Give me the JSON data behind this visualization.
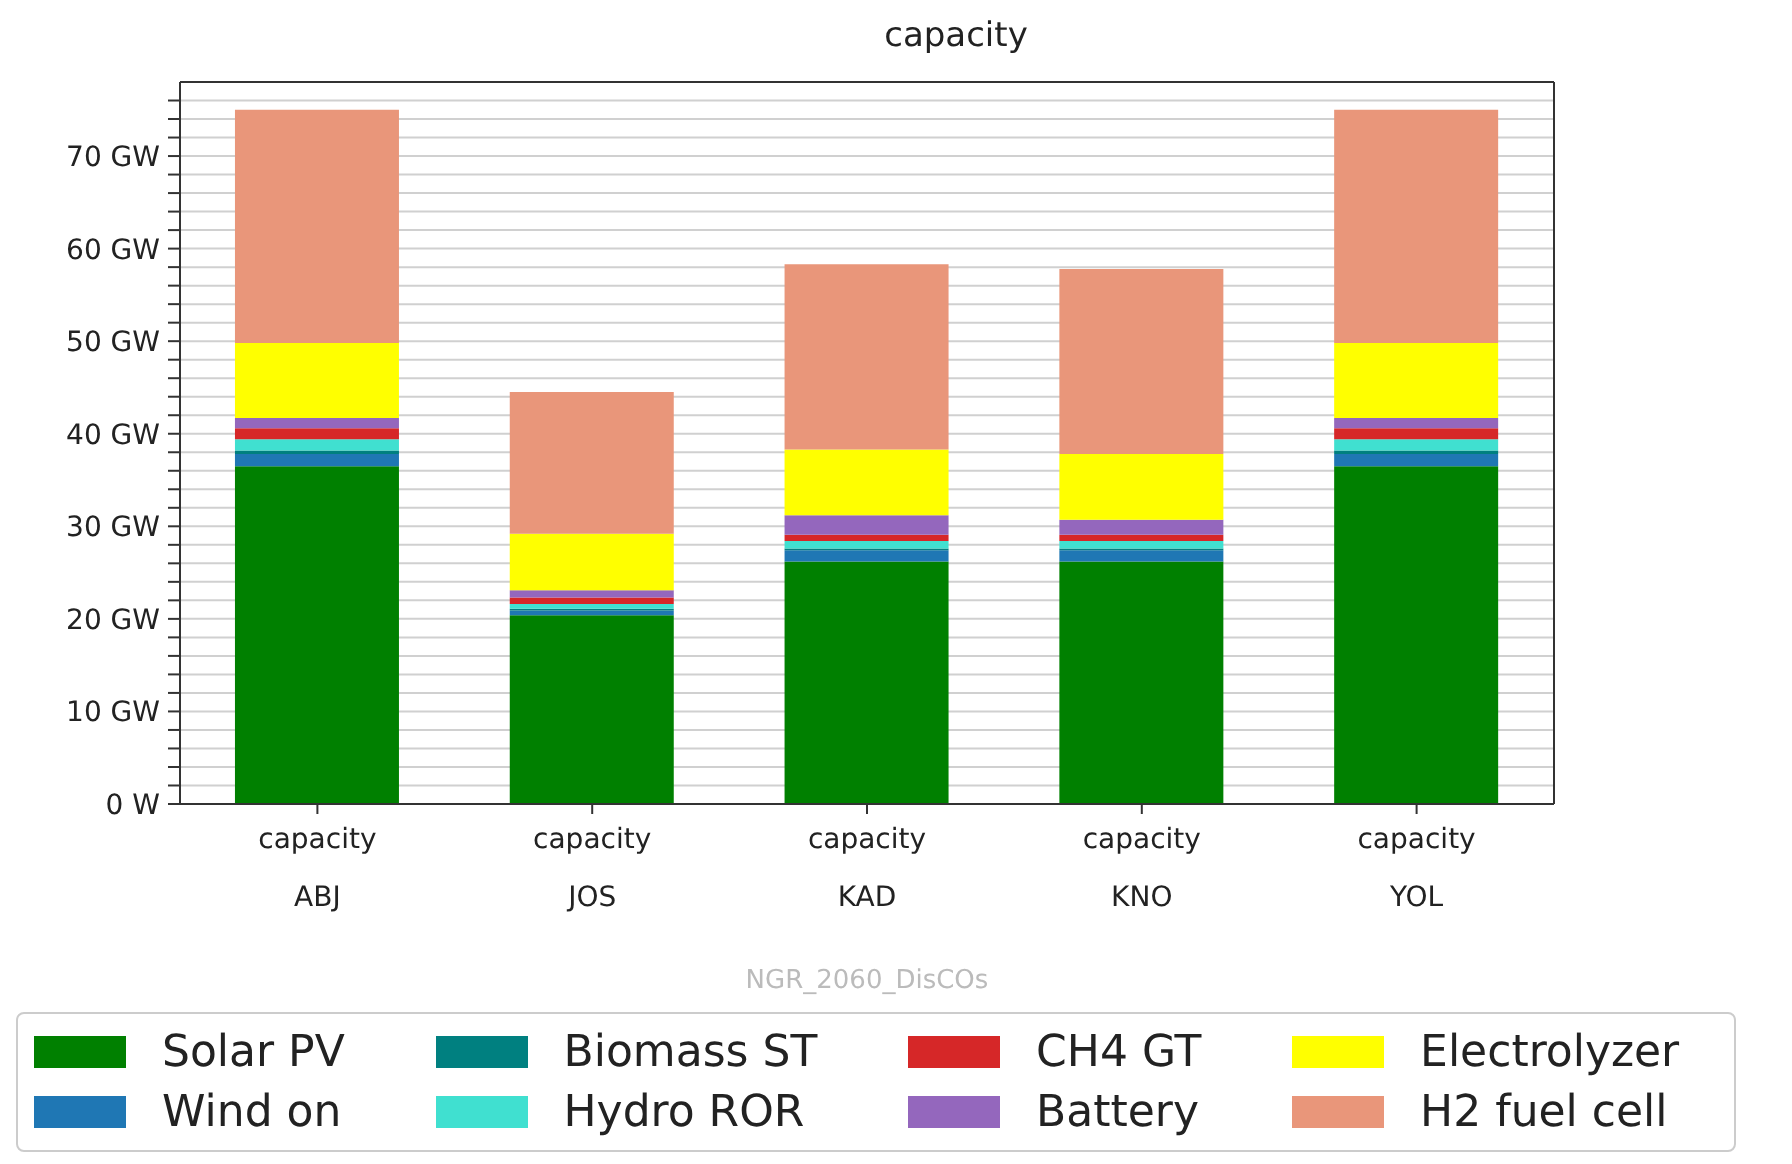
{
  "chart_data": {
    "type": "bar",
    "title": "capacity",
    "xlabel": "NGR_2060_DisCOs",
    "stacked": true,
    "categories": [
      "capacity\nABJ",
      "capacity\nJOS",
      "capacity\nKAD",
      "capacity\nKNO",
      "capacity\nYOL"
    ],
    "series": [
      {
        "name": "Solar PV",
        "color": "#008000",
        "values": [
          36.5,
          20.4,
          26.2,
          26.2,
          36.5
        ]
      },
      {
        "name": "Wind on",
        "color": "#1f77b4",
        "values": [
          1.3,
          0.5,
          1.2,
          1.2,
          1.3
        ]
      },
      {
        "name": "Biomass ST",
        "color": "#008080",
        "values": [
          0.4,
          0.2,
          0.2,
          0.2,
          0.4
        ]
      },
      {
        "name": "Hydro ROR",
        "color": "#40e0d0",
        "values": [
          1.2,
          0.5,
          0.8,
          0.8,
          1.2
        ]
      },
      {
        "name": "CH4 GT",
        "color": "#d62728",
        "values": [
          1.2,
          0.7,
          0.7,
          0.7,
          1.2
        ]
      },
      {
        "name": "Battery",
        "color": "#9467bd",
        "values": [
          1.1,
          0.8,
          2.1,
          1.6,
          1.1
        ]
      },
      {
        "name": "Electrolyzer",
        "color": "#ffff00",
        "values": [
          8.1,
          6.1,
          7.1,
          7.1,
          8.1
        ]
      },
      {
        "name": "H2 fuel cell",
        "color": "#e9967a",
        "values": [
          25.2,
          15.3,
          20.0,
          20.0,
          25.2
        ]
      }
    ],
    "ylim": [
      0,
      78
    ],
    "yticks": [
      {
        "value": 0,
        "label": "0 W"
      },
      {
        "value": 2,
        "label": null
      },
      {
        "value": 4,
        "label": null
      },
      {
        "value": 6,
        "label": null
      },
      {
        "value": 8,
        "label": null
      },
      {
        "value": 10,
        "label": "10 GW"
      },
      {
        "value": 12,
        "label": null
      },
      {
        "value": 14,
        "label": null
      },
      {
        "value": 16,
        "label": null
      },
      {
        "value": 18,
        "label": null
      },
      {
        "value": 20,
        "label": "20 GW"
      },
      {
        "value": 22,
        "label": null
      },
      {
        "value": 24,
        "label": null
      },
      {
        "value": 26,
        "label": null
      },
      {
        "value": 28,
        "label": null
      },
      {
        "value": 30,
        "label": "30 GW"
      },
      {
        "value": 32,
        "label": null
      },
      {
        "value": 34,
        "label": null
      },
      {
        "value": 36,
        "label": null
      },
      {
        "value": 38,
        "label": null
      },
      {
        "value": 40,
        "label": "40 GW"
      },
      {
        "value": 42,
        "label": null
      },
      {
        "value": 44,
        "label": null
      },
      {
        "value": 46,
        "label": null
      },
      {
        "value": 48,
        "label": null
      },
      {
        "value": 50,
        "label": "50 GW"
      },
      {
        "value": 52,
        "label": null
      },
      {
        "value": 54,
        "label": null
      },
      {
        "value": 56,
        "label": null
      },
      {
        "value": 58,
        "label": null
      },
      {
        "value": 60,
        "label": "60 GW"
      },
      {
        "value": 62,
        "label": null
      },
      {
        "value": 64,
        "label": null
      },
      {
        "value": 66,
        "label": null
      },
      {
        "value": 68,
        "label": null
      },
      {
        "value": 70,
        "label": "70 GW"
      },
      {
        "value": 72,
        "label": null
      },
      {
        "value": 74,
        "label": null
      },
      {
        "value": 76,
        "label": null
      }
    ],
    "grid": "y",
    "legend": "bottom"
  }
}
